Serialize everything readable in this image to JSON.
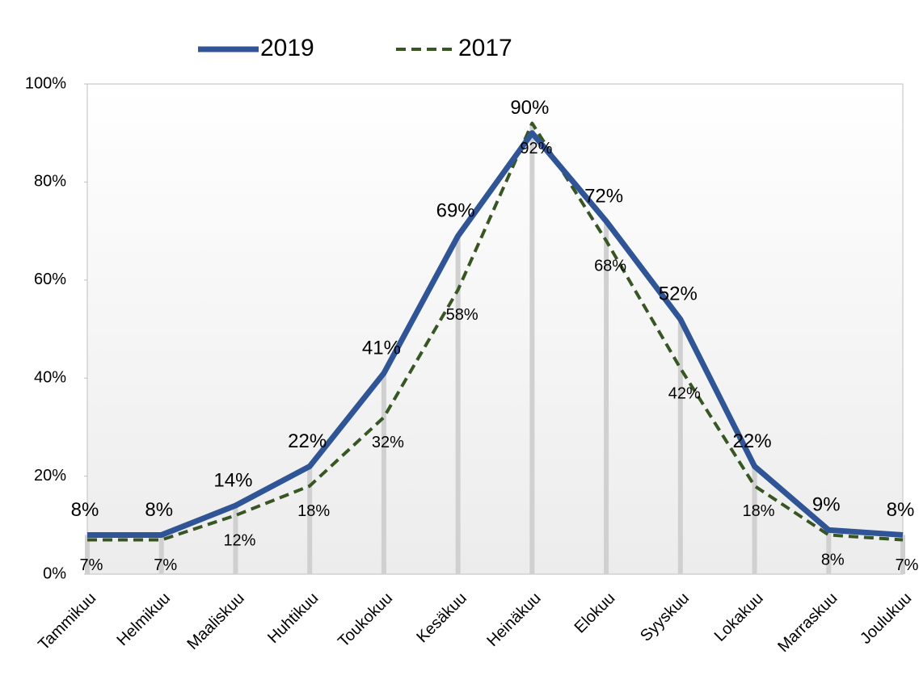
{
  "chart_data": {
    "type": "line",
    "categories": [
      "Tammikuu",
      "Helmikuu",
      "Maaliskuu",
      "Huhtikuu",
      "Toukokuu",
      "Kesäkuu",
      "Heinäkuu",
      "Elokuu",
      "Syyskuu",
      "Lokakuu",
      "Marraskuu",
      "Joulukuu"
    ],
    "series": [
      {
        "name": "2019",
        "color": "#2f5597",
        "dashed": false,
        "values": [
          8,
          8,
          14,
          22,
          41,
          69,
          90,
          72,
          52,
          22,
          9,
          8
        ],
        "value_labels": [
          "8%",
          "8%",
          "14%",
          "22%",
          "41%",
          "69%",
          "90%",
          "72%",
          "52%",
          "22%",
          "9%",
          "8%"
        ]
      },
      {
        "name": "2017",
        "color": "#375623",
        "dashed": true,
        "values": [
          7,
          7,
          12,
          18,
          32,
          58,
          92,
          68,
          42,
          18,
          8,
          7
        ],
        "value_labels": [
          "7%",
          "7%",
          "12%",
          "18%",
          "32%",
          "58%",
          "92%",
          "68%",
          "42%",
          "18%",
          "8%",
          "7%"
        ]
      }
    ],
    "ylim": [
      0,
      100
    ],
    "yticks": [
      {
        "value": 0,
        "label": "0%"
      },
      {
        "value": 20,
        "label": "20%"
      },
      {
        "value": 40,
        "label": "40%"
      },
      {
        "value": 60,
        "label": "60%"
      },
      {
        "value": 80,
        "label": "80%"
      },
      {
        "value": 100,
        "label": "100%"
      }
    ],
    "legend": "top"
  }
}
